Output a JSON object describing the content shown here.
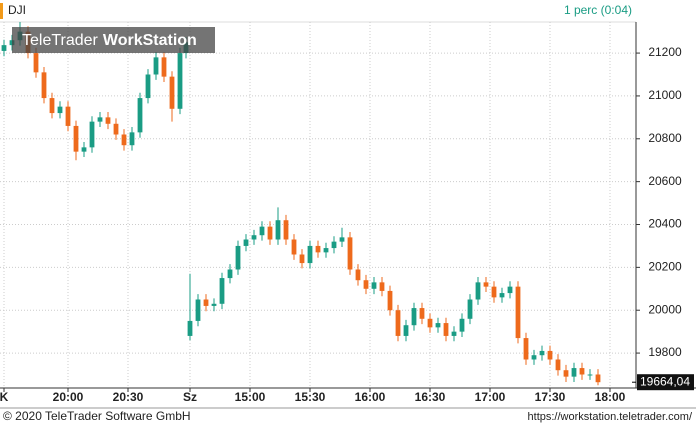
{
  "chart_data": {
    "type": "candlestick",
    "title": "DJI",
    "subtitle": "1 perc (0:04)",
    "watermark": [
      "TeleTrader",
      "WorkStation"
    ],
    "x": [
      2,
      6,
      10,
      14,
      18,
      22,
      26,
      30,
      34,
      38,
      42,
      46,
      50,
      54,
      58,
      62,
      66,
      70,
      74,
      78,
      82,
      86,
      90,
      93,
      95,
      99,
      103,
      107,
      111,
      115,
      119,
      123,
      127,
      131,
      135,
      139,
      143,
      147,
      151,
      155,
      159,
      163,
      167,
      171,
      175,
      179,
      183,
      187,
      191,
      195,
      199,
      203,
      207,
      211,
      215,
      219,
      223,
      227,
      231,
      235,
      239,
      243,
      247,
      251,
      255,
      259,
      263,
      267,
      271,
      275,
      279,
      283,
      287,
      291,
      295,
      299
    ],
    "open": [
      21210,
      21237,
      21260,
      21300,
      21200,
      21110,
      20990,
      20920,
      20950,
      20860,
      20740,
      20760,
      20880,
      20900,
      20870,
      20820,
      20770,
      20830,
      20990,
      21100,
      21180,
      21090,
      20940,
      21200,
      19880,
      19950,
      20050,
      20020,
      20030,
      20150,
      20190,
      20300,
      20330,
      20350,
      20390,
      20330,
      20420,
      20330,
      20260,
      20220,
      20300,
      20270,
      20290,
      20320,
      20340,
      20190,
      20140,
      20100,
      20130,
      20090,
      20000,
      19880,
      19930,
      20010,
      19960,
      19920,
      19940,
      19880,
      19900,
      19960,
      20050,
      20130,
      20110,
      20060,
      20080,
      20110,
      19870,
      19770,
      19790,
      19810,
      19770,
      19720,
      19690,
      19730,
      19700,
      19700
    ],
    "high": [
      21262,
      21285,
      21345,
      21325,
      21225,
      21135,
      21015,
      20975,
      20975,
      20885,
      20785,
      20905,
      20925,
      20925,
      20895,
      20845,
      20855,
      21015,
      21125,
      21205,
      21205,
      21115,
      21225,
      21275,
      20170,
      20075,
      20075,
      20055,
      20175,
      20215,
      20325,
      20355,
      20375,
      20415,
      20415,
      20480,
      20445,
      20355,
      20285,
      20325,
      20325,
      20315,
      20345,
      20385,
      20365,
      20215,
      20165,
      20155,
      20155,
      20115,
      20025,
      19955,
      20035,
      20035,
      19985,
      19965,
      19965,
      19925,
      19985,
      20075,
      20155,
      20155,
      20135,
      20105,
      20135,
      20135,
      19895,
      19815,
      19835,
      19835,
      19795,
      19745,
      19755,
      19755,
      19725,
      19725
    ],
    "low": [
      21185,
      21212,
      21235,
      21175,
      21085,
      20965,
      20895,
      20895,
      20835,
      20700,
      20715,
      20735,
      20855,
      20845,
      20795,
      20745,
      20745,
      20805,
      20965,
      21075,
      21065,
      20880,
      20915,
      21175,
      19860,
      19925,
      19995,
      19995,
      20005,
      20125,
      20165,
      20275,
      20305,
      20325,
      20305,
      20305,
      20305,
      20235,
      20195,
      20195,
      20245,
      20245,
      20265,
      20295,
      20165,
      20115,
      20075,
      20075,
      20065,
      19975,
      19855,
      19855,
      19905,
      19935,
      19895,
      19895,
      19855,
      19855,
      19875,
      19935,
      20025,
      20085,
      20035,
      20035,
      20055,
      19845,
      19745,
      19745,
      19765,
      19745,
      19695,
      19665,
      19665,
      19675,
      19675,
      19650
    ],
    "close": [
      21237,
      21260,
      21300,
      21200,
      21110,
      20990,
      20920,
      20950,
      20860,
      20740,
      20760,
      20880,
      20900,
      20870,
      20820,
      20770,
      20830,
      20990,
      21100,
      21180,
      21090,
      20940,
      21200,
      21250,
      19950,
      20050,
      20020,
      20030,
      20150,
      20190,
      20300,
      20330,
      20350,
      20390,
      20330,
      20420,
      20330,
      20260,
      20220,
      20300,
      20270,
      20290,
      20320,
      20340,
      20190,
      20140,
      20100,
      20130,
      20090,
      20000,
      19880,
      19930,
      20010,
      19960,
      19920,
      19940,
      19880,
      19900,
      19960,
      20050,
      20130,
      20110,
      20060,
      20080,
      20110,
      19870,
      19770,
      19790,
      19810,
      19770,
      19720,
      19690,
      19730,
      19700,
      19700,
      19664.04
    ],
    "up_color": "#1a9c84",
    "down_color": "#ee6a1c",
    "xlim": [
      0,
      318
    ],
    "ylim": [
      19637,
      21345
    ],
    "yticks": [
      19800,
      20000,
      20200,
      20400,
      20600,
      20800,
      21000,
      21200
    ],
    "xticks": [
      {
        "value": 2,
        "label": "K"
      },
      {
        "value": 34,
        "label": "20:00"
      },
      {
        "value": 64,
        "label": "20:30"
      },
      {
        "value": 95,
        "label": "Sz"
      },
      {
        "value": 125,
        "label": "15:00"
      },
      {
        "value": 155,
        "label": "15:30"
      },
      {
        "value": 185,
        "label": "16:00"
      },
      {
        "value": 215,
        "label": "16:30"
      },
      {
        "value": 245,
        "label": "17:00"
      },
      {
        "value": 275,
        "label": "17:30"
      },
      {
        "value": 305,
        "label": "18:00"
      }
    ],
    "grid": true,
    "last_label": {
      "value": 19664.04,
      "label": "19664,04"
    }
  },
  "footer": {
    "copyright": "© 2020 TeleTrader Software GmbH",
    "url": "https://workstation.teletrader.com/"
  }
}
